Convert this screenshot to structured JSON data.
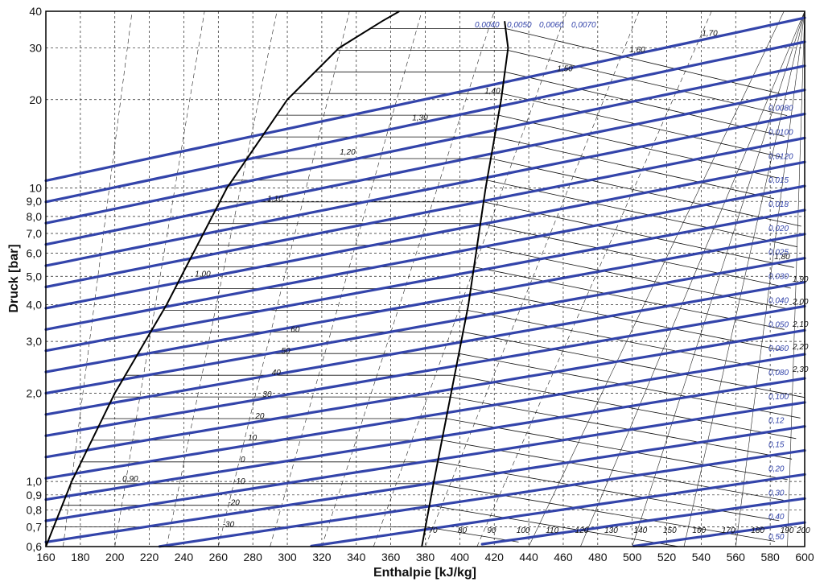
{
  "chart_data": {
    "type": "line",
    "title": "",
    "xlabel": "Enthalpie [kJ/kg]",
    "ylabel": "Druck [bar]",
    "xlim": [
      160,
      600
    ],
    "ylim": [
      0.6,
      40
    ],
    "yscale": "log",
    "grid": true,
    "x_ticks": [
      "160",
      "180",
      "200",
      "220",
      "240",
      "260",
      "280",
      "300",
      "320",
      "340",
      "360",
      "380",
      "400",
      "420",
      "440",
      "460",
      "480",
      "500",
      "520",
      "540",
      "560",
      "580",
      "600"
    ],
    "y_ticks": [
      {
        "value": 0.6,
        "label": "0,6"
      },
      {
        "value": 0.7,
        "label": "0,7"
      },
      {
        "value": 0.8,
        "label": "0,8"
      },
      {
        "value": 0.9,
        "label": "0,9"
      },
      {
        "value": 1.0,
        "label": "1,0"
      },
      {
        "value": 2.0,
        "label": "2,0"
      },
      {
        "value": 3.0,
        "label": "3,0"
      },
      {
        "value": 4.0,
        "label": "4,0"
      },
      {
        "value": 5.0,
        "label": "5,0"
      },
      {
        "value": 6.0,
        "label": "6,0"
      },
      {
        "value": 7.0,
        "label": "7,0"
      },
      {
        "value": 8.0,
        "label": "8,0"
      },
      {
        "value": 9.0,
        "label": "9,0"
      },
      {
        "value": 10,
        "label": "10"
      },
      {
        "value": 20,
        "label": "20"
      },
      {
        "value": 30,
        "label": "30"
      },
      {
        "value": 40,
        "label": "40"
      }
    ],
    "series": [
      {
        "name": "",
        "role": "saturated-liquid-line",
        "x": [
          160,
          175,
          200,
          230,
          265,
          300,
          330,
          355,
          365
        ],
        "y": [
          0.6,
          1.0,
          2.0,
          4.0,
          10,
          20,
          30,
          37,
          40
        ]
      },
      {
        "name": "",
        "role": "saturated-vapor-line",
        "x": [
          378,
          385,
          395,
          405,
          415,
          424,
          428,
          426
        ],
        "y": [
          0.6,
          1.0,
          2.0,
          4.0,
          10,
          20,
          30,
          37
        ]
      }
    ],
    "specific_volume_labels": [
      "0,0040",
      "0,0050",
      "0,0060",
      "0,0070",
      "0,0080",
      "0,0100",
      "0,0120",
      "0,015",
      "0,018",
      "0,020",
      "0,025",
      "0,030",
      "0,040",
      "0,050",
      "0,060",
      "0,080",
      "0,100",
      "0,12",
      "0,15",
      "0,20",
      "0,30",
      "0,40",
      "0,50"
    ],
    "temperature_labels": [
      "-30",
      "-20",
      "-10",
      "0",
      "10",
      "20",
      "30",
      "40",
      "50",
      "60",
      "70",
      "80",
      "90",
      "100",
      "110",
      "120",
      "130",
      "140",
      "150",
      "160",
      "170",
      "180",
      "190",
      "200"
    ],
    "entropy_labels": [
      "0,90",
      "1,00",
      "1,10",
      "1,20",
      "1,30",
      "1,40",
      "1,50",
      "1,60",
      "1,70",
      "1,80",
      "1,90",
      "2,00",
      "2,10",
      "2,20",
      "2,30"
    ],
    "colors": {
      "isochore": "#3344aa",
      "grid": "#222222",
      "saturation": "#000000"
    }
  }
}
